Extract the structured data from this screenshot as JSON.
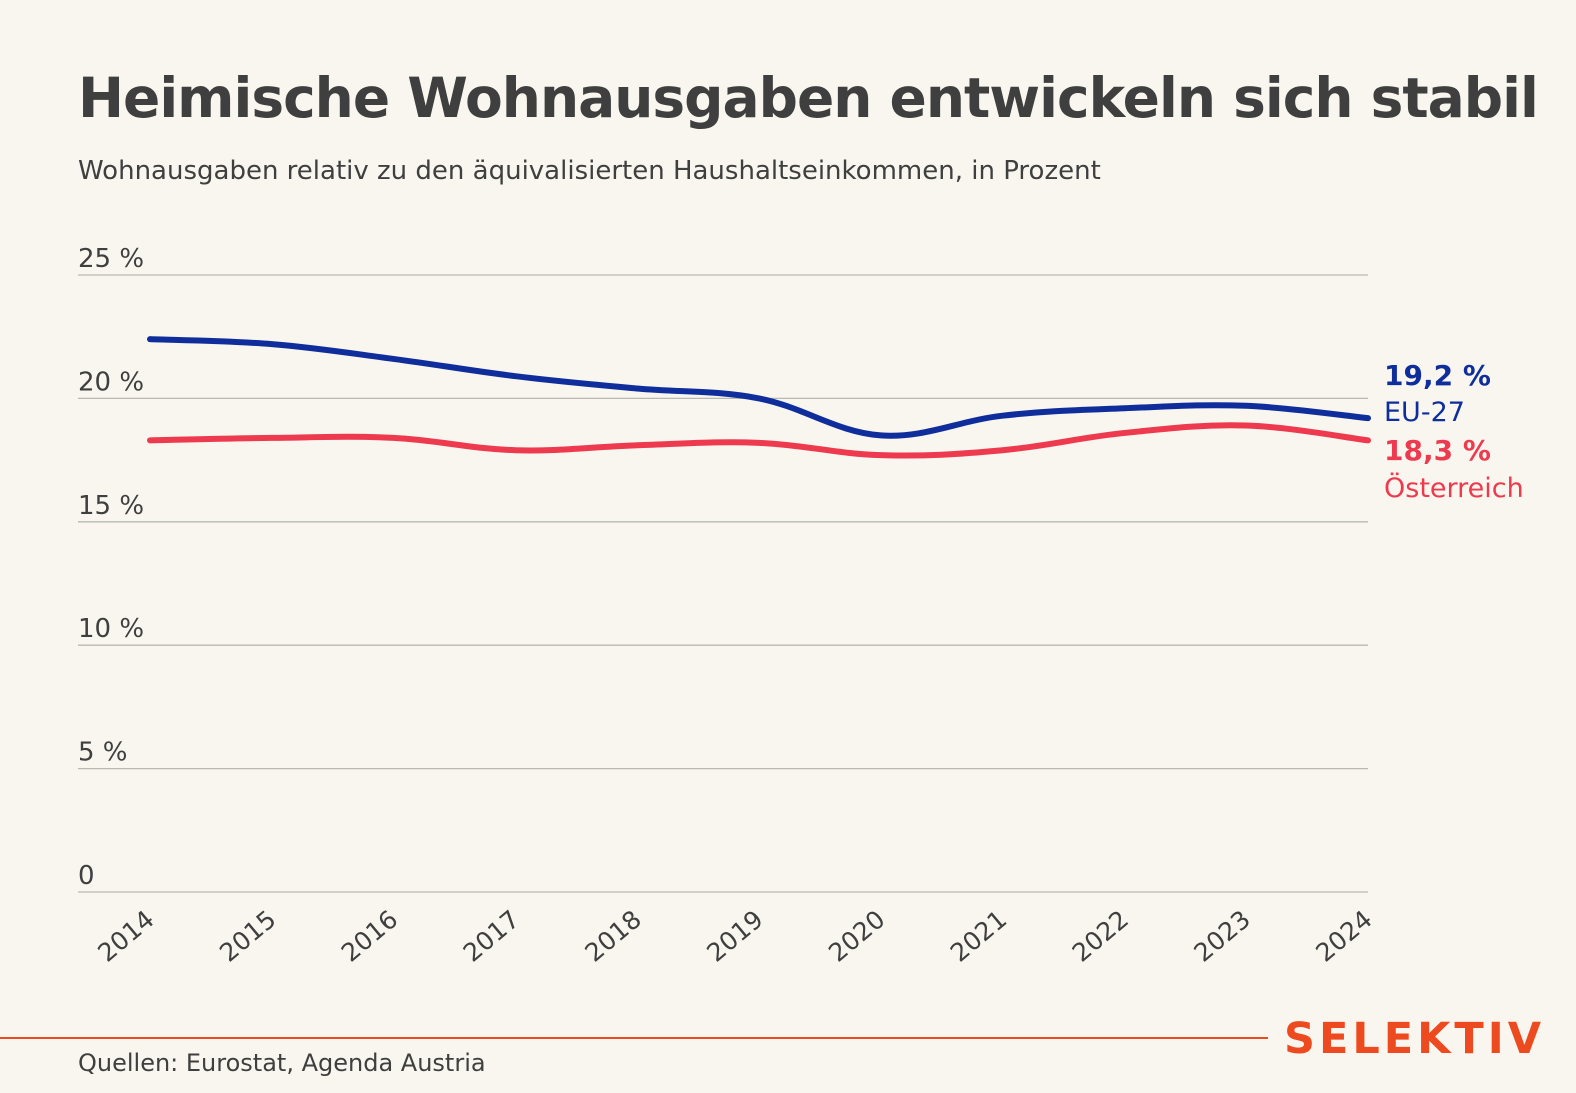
{
  "header": {
    "title": "Heimische Wohnausgaben entwickeln sich stabil",
    "subtitle": "Wohnausgaben relativ zu den äquivalisierten Haushaltseinkommen, in Prozent"
  },
  "footer": {
    "source": "Quellen: Eurostat, Agenda Austria",
    "brand": "SELEKTIV",
    "brand_color": "#ee4a1f"
  },
  "chart_data": {
    "type": "line",
    "title": "Heimische Wohnausgaben entwickeln sich stabil",
    "subtitle": "Wohnausgaben relativ zu den äquivalisierten Haushaltseinkommen, in Prozent",
    "xlabel": "",
    "ylabel": "",
    "x": [
      "2014",
      "2015",
      "2016",
      "2017",
      "2018",
      "2019",
      "2020",
      "2021",
      "2022",
      "2023",
      "2024"
    ],
    "ylim": [
      0,
      25
    ],
    "yticks": [
      0,
      5,
      10,
      15,
      20,
      25
    ],
    "ytick_labels": [
      "0",
      "5 %",
      "10 %",
      "15 %",
      "20 %",
      "25 %"
    ],
    "grid": true,
    "legend": "direct labels at line ends (right)",
    "series": [
      {
        "name": "EU-27",
        "color": "#0f2e9c",
        "end_label": "19,2 %",
        "values": [
          22.4,
          22.2,
          21.6,
          20.9,
          20.4,
          20.0,
          18.5,
          19.3,
          19.6,
          19.7,
          19.2
        ]
      },
      {
        "name": "Österreich",
        "color": "#ee3a4e",
        "end_label": "18,3 %",
        "values": [
          18.3,
          18.4,
          18.4,
          17.9,
          18.1,
          18.2,
          17.7,
          17.9,
          18.6,
          18.9,
          18.3
        ]
      }
    ]
  }
}
